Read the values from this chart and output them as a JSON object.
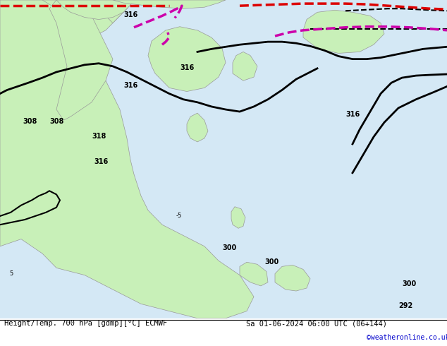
{
  "title_left": "Height/Temp. 700 hPa [gdmp][°C] ECMWF",
  "title_right": "Sa 01-06-2024 06:00 UTC (06+144)",
  "credit": "©weatheronline.co.uk",
  "bg_color": "#d0e8f0",
  "land_color": "#c8f0c0",
  "land_color2": "#b8e8b0",
  "border_color": "#aaaaaa",
  "contour_color_black": "#000000",
  "contour_color_red": "#cc0000",
  "contour_color_pink": "#cc00cc",
  "figsize": [
    6.34,
    4.9
  ],
  "dpi": 100
}
